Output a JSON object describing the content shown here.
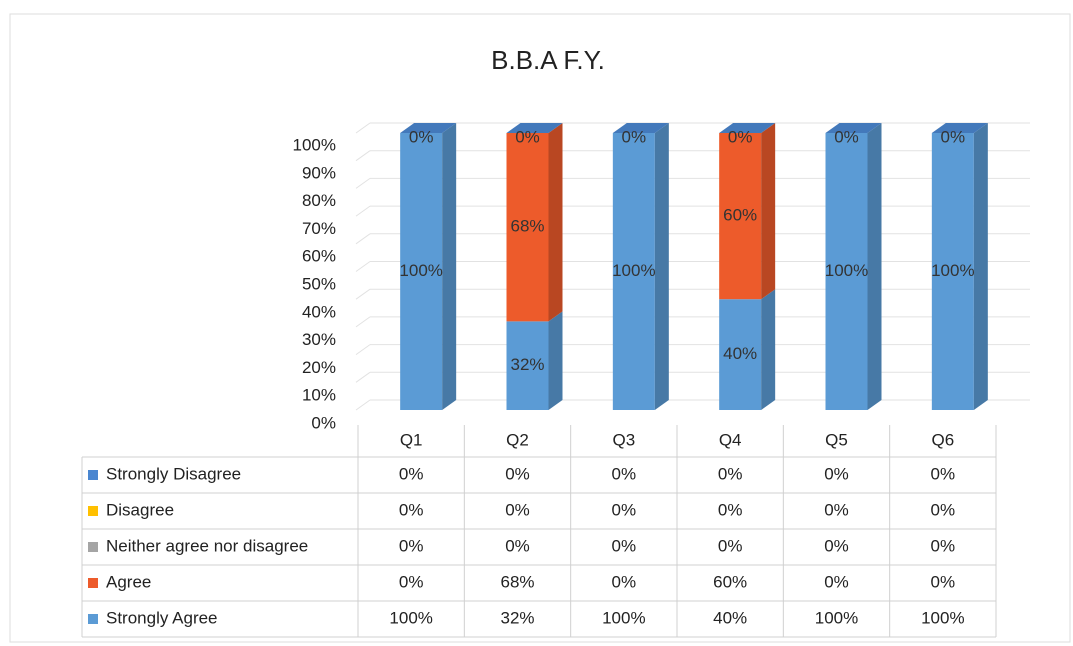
{
  "chart_data": {
    "type": "bar",
    "stacked": true,
    "title": "B.B.A F.Y.",
    "categories": [
      "Q1",
      "Q2",
      "Q3",
      "Q4",
      "Q5",
      "Q6"
    ],
    "series": [
      {
        "name": "Strongly Disagree",
        "color": "#4a86d0",
        "values": [
          0,
          0,
          0,
          0,
          0,
          0
        ],
        "value_labels": [
          "0%",
          "0%",
          "0%",
          "0%",
          "0%",
          "0%"
        ]
      },
      {
        "name": "Disagree",
        "color": "#ffc000",
        "values": [
          0,
          0,
          0,
          0,
          0,
          0
        ],
        "value_labels": [
          "0%",
          "0%",
          "0%",
          "0%",
          "0%",
          "0%"
        ]
      },
      {
        "name": "Neither agree nor disagree",
        "color": "#a5a5a5",
        "values": [
          0,
          0,
          0,
          0,
          0,
          0
        ],
        "value_labels": [
          "0%",
          "0%",
          "0%",
          "0%",
          "0%",
          "0%"
        ]
      },
      {
        "name": "Agree",
        "color": "#ed5b2b",
        "values": [
          0,
          68,
          0,
          60,
          0,
          0
        ],
        "value_labels": [
          "0%",
          "68%",
          "0%",
          "60%",
          "0%",
          "0%"
        ]
      },
      {
        "name": "Strongly Agree",
        "color": "#5b9bd5",
        "values": [
          100,
          32,
          100,
          40,
          100,
          100
        ],
        "value_labels": [
          "100%",
          "32%",
          "100%",
          "40%",
          "100%",
          "100%"
        ]
      }
    ],
    "ylim": [
      0,
      100
    ],
    "yticks": [
      {
        "value": 0,
        "label": "0%"
      },
      {
        "value": 10,
        "label": "10%"
      },
      {
        "value": 20,
        "label": "20%"
      },
      {
        "value": 30,
        "label": "30%"
      },
      {
        "value": 40,
        "label": "40%"
      },
      {
        "value": 50,
        "label": "50%"
      },
      {
        "value": 60,
        "label": "60%"
      },
      {
        "value": 70,
        "label": "70%"
      },
      {
        "value": 80,
        "label": "80%"
      },
      {
        "value": 90,
        "label": "90%"
      },
      {
        "value": 100,
        "label": "100%"
      }
    ],
    "grid": true,
    "data_table": true
  }
}
